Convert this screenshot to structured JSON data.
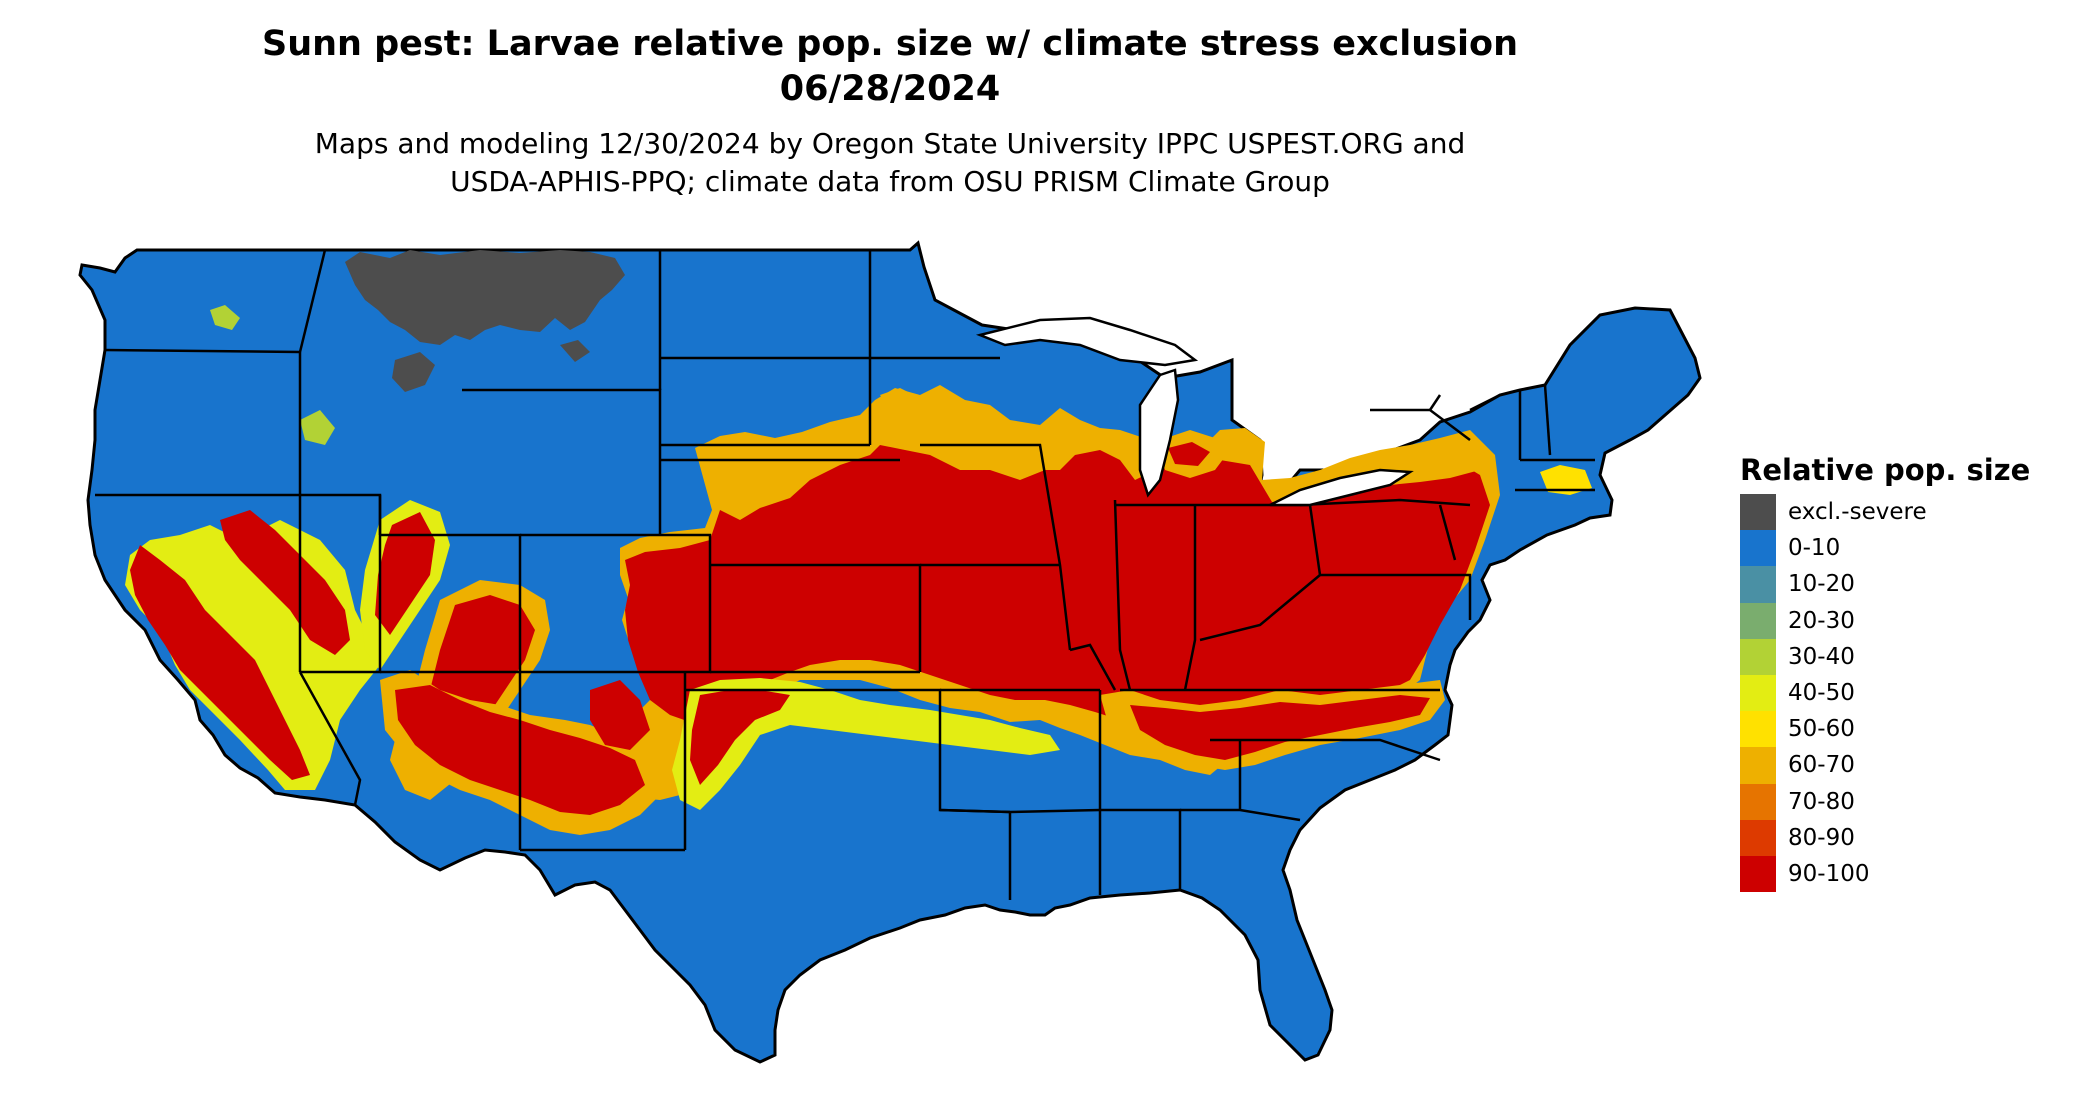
{
  "title": {
    "line1": "Sunn pest: Larvae relative pop. size w/ climate stress exclusion",
    "line2": "06/28/2024"
  },
  "subtitle": {
    "line1": "Maps and modeling 12/30/2024 by Oregon State University IPPC USPEST.ORG and",
    "line2": "USDA-APHIS-PPQ; climate data from OSU PRISM Climate Group"
  },
  "legend": {
    "title": "Relative pop. size",
    "items": [
      {
        "label": "excl.-severe",
        "color": "#4d4d4d"
      },
      {
        "label": "0-10",
        "color": "#1874cd"
      },
      {
        "label": "10-20",
        "color": "#4a90a4"
      },
      {
        "label": "20-30",
        "color": "#7aad6e"
      },
      {
        "label": "30-40",
        "color": "#b2d235"
      },
      {
        "label": "40-50",
        "color": "#e3ed13"
      },
      {
        "label": "50-60",
        "color": "#ffe100"
      },
      {
        "label": "60-70",
        "color": "#eeb000"
      },
      {
        "label": "70-80",
        "color": "#e67400"
      },
      {
        "label": "80-90",
        "color": "#dd3a00"
      },
      {
        "label": "90-100",
        "color": "#cd0000"
      }
    ]
  },
  "colors": {
    "background": "#ffffff",
    "state_border": "#000000"
  }
}
